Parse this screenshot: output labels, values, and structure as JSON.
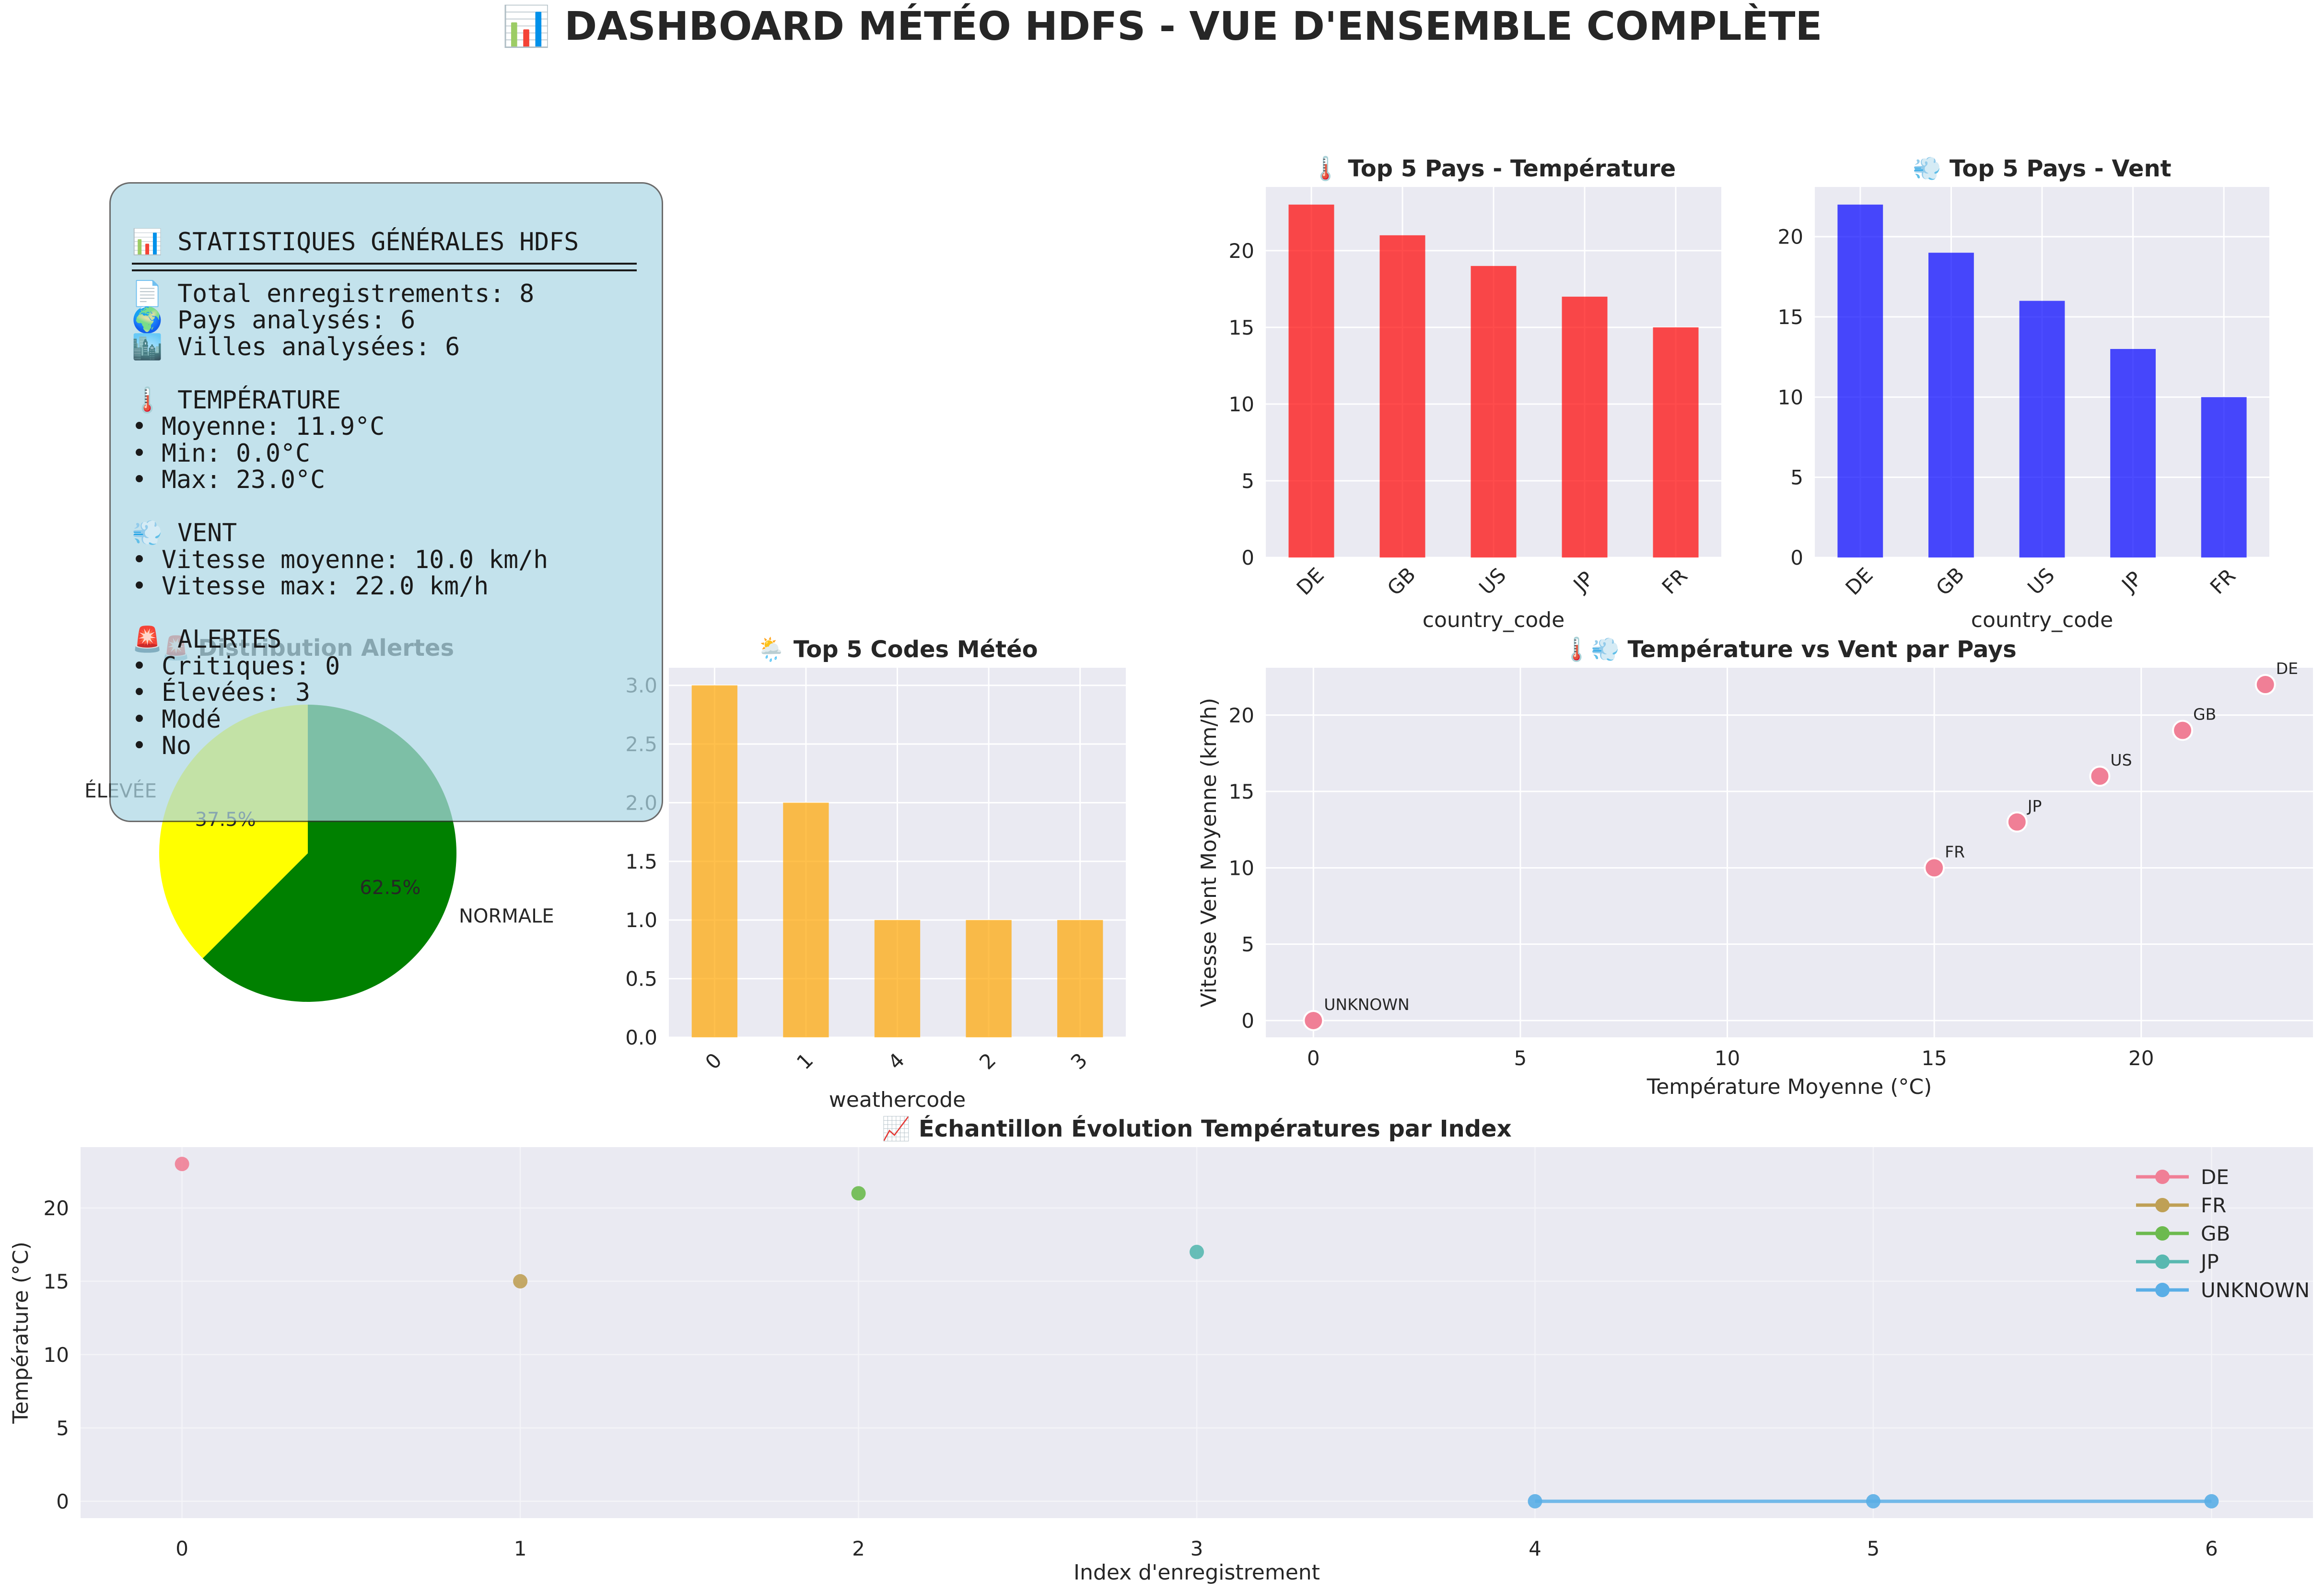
{
  "suptitle": "📊 DASHBOARD MÉTÉO HDFS - VUE D'ENSEMBLE COMPLÈTE",
  "stats_box": {
    "title": "📊 STATISTIQUES GÉNÉRALES HDFS",
    "lines": [
      "📄 Total enregistrements: 8",
      "🌍 Pays analysés: 6",
      "🏙️ Villes analysées: 6",
      "",
      "🌡️ TEMPÉRATURE",
      "• Moyenne: 11.9°C",
      "• Min: 0.0°C",
      "• Max: 23.0°C",
      "",
      "💨 VENT",
      "• Vitesse moyenne: 10.0 km/h",
      "• Vitesse max: 22.0 km/h",
      "",
      "🚨 ALERTES",
      "• Critiques: 0",
      "• Élevées: 3",
      "• Modé",
      "• No"
    ]
  },
  "chart_data": [
    {
      "id": "temp",
      "type": "bar",
      "title": "🌡️ Top 5 Pays - Température",
      "xlabel": "country_code",
      "ylabel": "",
      "categories": [
        "DE",
        "GB",
        "US",
        "JP",
        "FR"
      ],
      "values": [
        23,
        21,
        19,
        17,
        15
      ],
      "ylim": [
        0,
        24.15
      ],
      "yticks": [
        0,
        5,
        10,
        15,
        20
      ],
      "color": "#ff0000",
      "grid": true
    },
    {
      "id": "wind",
      "type": "bar",
      "title": "💨 Top 5 Pays - Vent",
      "xlabel": "country_code",
      "ylabel": "",
      "categories": [
        "DE",
        "GB",
        "US",
        "JP",
        "FR"
      ],
      "values": [
        22,
        19,
        16,
        13,
        10
      ],
      "ylim": [
        0,
        23.1
      ],
      "yticks": [
        0,
        5,
        10,
        15,
        20
      ],
      "color": "#0000ff",
      "grid": true
    },
    {
      "id": "alerts",
      "type": "pie",
      "title": "🚨 Distribution Alertes",
      "slices": [
        {
          "label": "ÉLEVÉE",
          "value": 37.5,
          "pct": "37.5%",
          "color": "#ffff00"
        },
        {
          "label": "NORMALE",
          "value": 62.5,
          "pct": "62.5%",
          "color": "#008000"
        }
      ]
    },
    {
      "id": "codes",
      "type": "bar",
      "title": "🌦️ Top 5 Codes Météo",
      "xlabel": "weathercode",
      "ylabel": "",
      "categories": [
        "0",
        "1",
        "4",
        "2",
        "3"
      ],
      "values": [
        3,
        2,
        1,
        1,
        1
      ],
      "ylim": [
        0,
        3.15
      ],
      "yticks": [
        "0.0",
        "0.5",
        "1.0",
        "1.5",
        "2.0",
        "2.5",
        "3.0"
      ],
      "color": "#ffa500",
      "grid": true
    },
    {
      "id": "scatter",
      "type": "scatter",
      "title": "🌡️💨 Température vs Vent par Pays",
      "xlabel": "Température Moyenne (°C)",
      "ylabel": "Vitesse Vent Moyenne (km/h)",
      "points": [
        {
          "label": "DE",
          "x": 23,
          "y": 22
        },
        {
          "label": "GB",
          "x": 21,
          "y": 19
        },
        {
          "label": "US",
          "x": 19,
          "y": 16
        },
        {
          "label": "JP",
          "x": 17,
          "y": 13
        },
        {
          "label": "FR",
          "x": 15,
          "y": 10
        },
        {
          "label": "UNKNOWN",
          "x": 0,
          "y": 0
        }
      ],
      "xlim": [
        -1.15,
        24.15
      ],
      "ylim": [
        -1.1,
        23.1
      ],
      "xticks": [
        0,
        5,
        10,
        15,
        20
      ],
      "yticks": [
        0,
        5,
        10,
        15,
        20
      ],
      "color": "#f07f96",
      "grid": true
    },
    {
      "id": "evolution",
      "type": "line",
      "title": "📈 Échantillon Évolution Températures par Index",
      "xlabel": "Index d'enregistrement",
      "ylabel": "Température (°C)",
      "xlim": [
        -0.3,
        6.3
      ],
      "ylim": [
        -1.15,
        24.15
      ],
      "xticks": [
        0,
        1,
        2,
        3,
        4,
        5,
        6
      ],
      "yticks": [
        0,
        5,
        10,
        15,
        20
      ],
      "legend": "top-right",
      "series": [
        {
          "name": "DE",
          "color": "#f07f96",
          "x": [
            0
          ],
          "y": [
            23
          ]
        },
        {
          "name": "FR",
          "color": "#bfa055",
          "x": [
            1
          ],
          "y": [
            15
          ]
        },
        {
          "name": "GB",
          "color": "#6cba4e",
          "x": [
            2
          ],
          "y": [
            21
          ]
        },
        {
          "name": "JP",
          "color": "#58b8b0",
          "x": [
            3
          ],
          "y": [
            17
          ]
        },
        {
          "name": "UNKNOWN",
          "color": "#5aaee6",
          "x": [
            4,
            5,
            6
          ],
          "y": [
            0,
            0,
            0
          ]
        }
      ],
      "grid": true
    }
  ]
}
